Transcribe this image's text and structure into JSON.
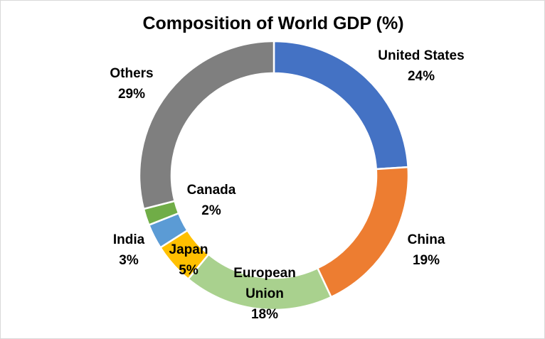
{
  "chart_data": {
    "type": "pie",
    "variant": "donut",
    "title": "Composition of World GDP (%)",
    "unit": "%",
    "slices": [
      {
        "name": "United States",
        "value": 24,
        "label": "24%",
        "color": "#4472C4"
      },
      {
        "name": "China",
        "value": 19,
        "label": "19%",
        "color": "#ED7D31"
      },
      {
        "name": "European Union",
        "label_lines": [
          "European",
          "Union"
        ],
        "value": 18,
        "label": "18%",
        "color": "#A9D18E"
      },
      {
        "name": "Japan",
        "value": 5,
        "label": "5%",
        "color": "#FFC000"
      },
      {
        "name": "India",
        "value": 3,
        "label": "3%",
        "color": "#5B9BD5"
      },
      {
        "name": "Canada",
        "value": 2,
        "label": "2%",
        "color": "#70AD47"
      },
      {
        "name": "Others",
        "value": 29,
        "label": "29%",
        "color": "#7F7F7F"
      }
    ]
  }
}
